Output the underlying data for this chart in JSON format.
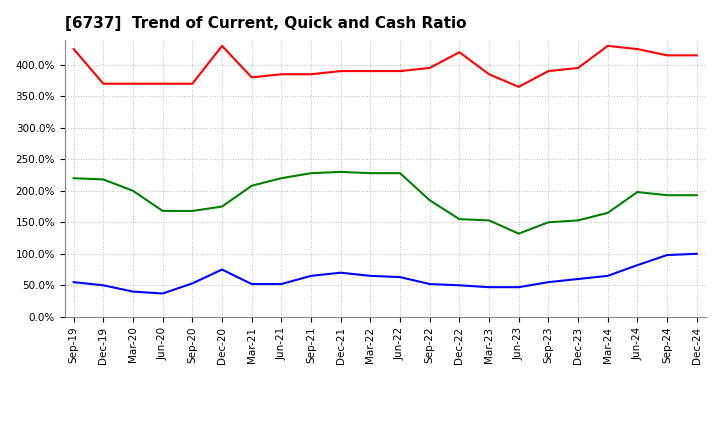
{
  "title": "[6737]  Trend of Current, Quick and Cash Ratio",
  "x_labels": [
    "Sep-19",
    "Dec-19",
    "Mar-20",
    "Jun-20",
    "Sep-20",
    "Dec-20",
    "Mar-21",
    "Jun-21",
    "Sep-21",
    "Dec-21",
    "Mar-22",
    "Jun-22",
    "Sep-22",
    "Dec-22",
    "Mar-23",
    "Jun-23",
    "Sep-23",
    "Dec-23",
    "Mar-24",
    "Jun-24",
    "Sep-24",
    "Dec-24"
  ],
  "current_ratio": [
    425,
    370,
    370,
    370,
    370,
    430,
    380,
    385,
    385,
    390,
    390,
    390,
    395,
    420,
    385,
    365,
    390,
    395,
    430,
    425,
    415,
    415
  ],
  "quick_ratio": [
    220,
    218,
    200,
    168,
    168,
    175,
    208,
    220,
    228,
    230,
    228,
    228,
    185,
    155,
    153,
    132,
    150,
    153,
    165,
    198,
    193,
    193
  ],
  "cash_ratio": [
    55,
    50,
    40,
    37,
    53,
    75,
    52,
    52,
    65,
    70,
    65,
    63,
    52,
    50,
    47,
    47,
    55,
    60,
    65,
    82,
    98,
    100
  ],
  "current_color": "#FF0000",
  "quick_color": "#008000",
  "cash_color": "#0000FF",
  "ylim": [
    0,
    440
  ],
  "yticks": [
    0,
    50,
    100,
    150,
    200,
    250,
    300,
    350,
    400
  ],
  "background_color": "#FFFFFF",
  "grid_color": "#AAAAAA",
  "title_fontsize": 11,
  "tick_fontsize": 7.5,
  "legend_fontsize": 9
}
